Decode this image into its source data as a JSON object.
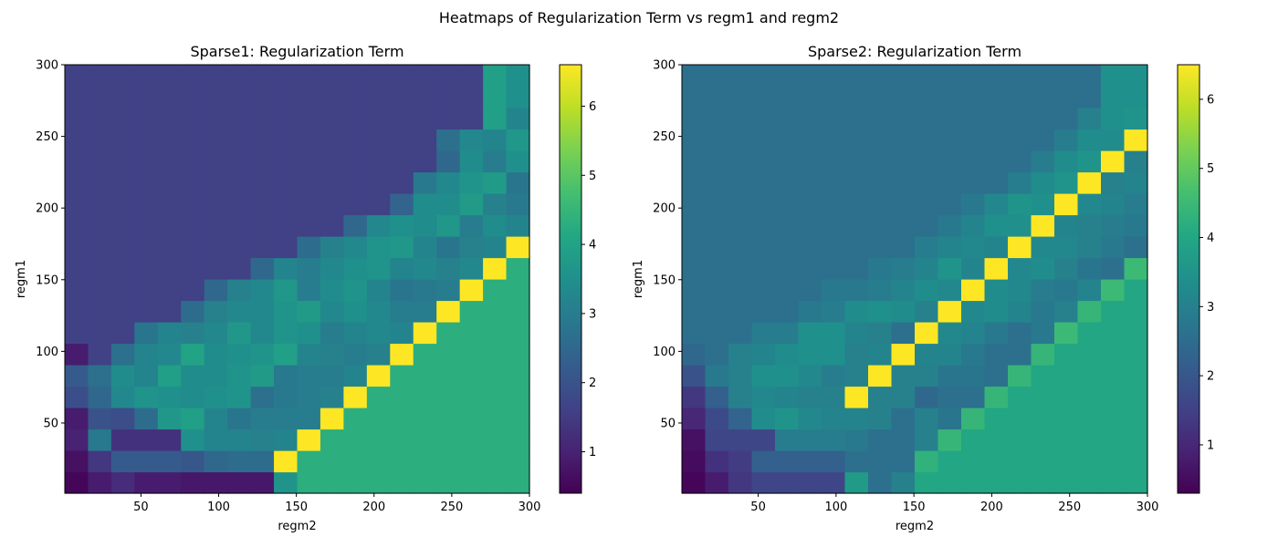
{
  "suptitle": "Heatmaps of Regularization Term vs regm1 and regm2",
  "chart_data": [
    {
      "type": "heatmap",
      "title": "Sparse1: Regularization Term",
      "xlabel": "regm2",
      "ylabel": "regm1",
      "x_ticks": [
        50,
        100,
        150,
        200,
        250,
        300
      ],
      "y_ticks": [
        50,
        100,
        150,
        200,
        250,
        300
      ],
      "xlim": [
        1,
        300
      ],
      "ylim": [
        1,
        300
      ],
      "grid_size": 20,
      "colorbar_range": [
        0.4,
        6.6
      ],
      "colorbar_ticks": [
        1,
        2,
        3,
        4,
        5,
        6
      ],
      "colormap": "viridis",
      "values": [
        [
          0.5,
          0.9,
          1.2,
          0.9,
          0.9,
          0.8,
          0.8,
          0.8,
          0.8,
          3.6,
          4.3,
          4.3,
          4.3,
          4.3,
          4.3,
          4.3,
          4.3,
          4.3,
          4.3,
          4.3
        ],
        [
          0.7,
          1.4,
          2.2,
          2.2,
          2.2,
          2.1,
          2.5,
          2.6,
          2.6,
          6.6,
          4.3,
          4.3,
          4.3,
          4.3,
          4.3,
          4.3,
          4.3,
          4.3,
          4.3,
          4.3
        ],
        [
          1.0,
          2.9,
          1.3,
          1.3,
          1.3,
          3.5,
          3.2,
          3.2,
          3.1,
          3.2,
          6.6,
          4.3,
          4.3,
          4.3,
          4.3,
          4.3,
          4.3,
          4.3,
          4.3,
          4.3
        ],
        [
          0.9,
          2.0,
          1.9,
          2.6,
          3.7,
          3.9,
          3.2,
          2.8,
          3.0,
          3.0,
          3.0,
          6.6,
          4.3,
          4.3,
          4.3,
          4.3,
          4.3,
          4.3,
          4.3,
          4.3
        ],
        [
          1.9,
          2.5,
          3.3,
          3.6,
          3.5,
          3.4,
          3.5,
          3.6,
          2.7,
          2.9,
          3.0,
          3.1,
          6.6,
          4.3,
          4.3,
          4.3,
          4.3,
          4.3,
          4.3,
          4.3
        ],
        [
          2.2,
          2.7,
          3.4,
          3.2,
          3.9,
          3.4,
          3.4,
          3.6,
          3.8,
          2.9,
          3.0,
          3.0,
          3.2,
          6.6,
          4.3,
          4.3,
          4.3,
          4.3,
          4.3,
          4.3
        ],
        [
          0.9,
          1.6,
          2.7,
          3.2,
          3.3,
          4.0,
          3.4,
          3.5,
          3.6,
          3.9,
          3.2,
          3.1,
          3.0,
          3.1,
          6.6,
          4.3,
          4.3,
          4.3,
          4.3,
          4.3
        ],
        [
          1.6,
          1.6,
          1.6,
          2.8,
          3.2,
          3.1,
          3.3,
          3.7,
          3.3,
          3.6,
          3.5,
          3.0,
          3.2,
          3.3,
          3.2,
          6.6,
          4.3,
          4.3,
          4.3,
          4.3
        ],
        [
          1.6,
          1.6,
          1.6,
          1.6,
          1.6,
          2.6,
          3.1,
          3.3,
          3.3,
          3.6,
          3.8,
          3.3,
          3.5,
          3.3,
          3.0,
          3.0,
          6.6,
          4.3,
          4.3,
          4.3
        ],
        [
          1.6,
          1.6,
          1.6,
          1.6,
          1.6,
          1.6,
          2.5,
          3.1,
          3.3,
          3.7,
          3.0,
          3.4,
          3.6,
          3.2,
          2.8,
          2.9,
          3.0,
          6.6,
          4.3,
          4.3
        ],
        [
          1.6,
          1.6,
          1.6,
          1.6,
          1.6,
          1.6,
          1.6,
          1.6,
          2.5,
          3.2,
          3.0,
          3.3,
          3.5,
          3.6,
          3.2,
          3.3,
          3.1,
          3.3,
          6.6,
          4.3
        ],
        [
          1.6,
          1.6,
          1.6,
          1.6,
          1.6,
          1.6,
          1.6,
          1.6,
          1.6,
          1.6,
          2.6,
          3.1,
          3.3,
          3.6,
          3.7,
          3.2,
          2.8,
          3.1,
          3.2,
          6.6
        ],
        [
          1.6,
          1.6,
          1.6,
          1.6,
          1.6,
          1.6,
          1.6,
          1.6,
          1.6,
          1.6,
          1.6,
          1.6,
          2.5,
          3.3,
          3.5,
          3.4,
          3.7,
          3.0,
          3.4,
          3.2
        ],
        [
          1.6,
          1.6,
          1.6,
          1.6,
          1.6,
          1.6,
          1.6,
          1.6,
          1.6,
          1.6,
          1.6,
          1.6,
          1.6,
          1.6,
          2.4,
          3.4,
          3.4,
          3.8,
          3.1,
          2.9
        ],
        [
          1.6,
          1.6,
          1.6,
          1.6,
          1.6,
          1.6,
          1.6,
          1.6,
          1.6,
          1.6,
          1.6,
          1.6,
          1.6,
          1.6,
          1.6,
          2.9,
          3.3,
          3.6,
          3.8,
          2.8
        ],
        [
          1.6,
          1.6,
          1.6,
          1.6,
          1.6,
          1.6,
          1.6,
          1.6,
          1.6,
          1.6,
          1.6,
          1.6,
          1.6,
          1.6,
          1.6,
          1.6,
          2.5,
          3.4,
          3.0,
          3.5
        ],
        [
          1.6,
          1.6,
          1.6,
          1.6,
          1.6,
          1.6,
          1.6,
          1.6,
          1.6,
          1.6,
          1.6,
          1.6,
          1.6,
          1.6,
          1.6,
          1.6,
          2.7,
          3.3,
          3.2,
          3.7
        ],
        [
          1.6,
          1.6,
          1.6,
          1.6,
          1.6,
          1.6,
          1.6,
          1.6,
          1.6,
          1.6,
          1.6,
          1.6,
          1.6,
          1.6,
          1.6,
          1.6,
          1.6,
          1.6,
          3.9,
          3.2
        ],
        [
          1.6,
          1.6,
          1.6,
          1.6,
          1.6,
          1.6,
          1.6,
          1.6,
          1.6,
          1.6,
          1.6,
          1.6,
          1.6,
          1.6,
          1.6,
          1.6,
          1.6,
          1.6,
          3.9,
          3.5
        ],
        [
          1.6,
          1.6,
          1.6,
          1.6,
          1.6,
          1.6,
          1.6,
          1.6,
          1.6,
          1.6,
          1.6,
          1.6,
          1.6,
          1.6,
          1.6,
          1.6,
          1.6,
          1.6,
          3.9,
          3.5
        ]
      ]
    },
    {
      "type": "heatmap",
      "title": "Sparse2: Regularization Term",
      "xlabel": "regm2",
      "ylabel": "regm1",
      "x_ticks": [
        50,
        100,
        150,
        200,
        250,
        300
      ],
      "y_ticks": [
        50,
        100,
        150,
        200,
        250,
        300
      ],
      "xlim": [
        1,
        300
      ],
      "ylim": [
        1,
        300
      ],
      "grid_size": 20,
      "colorbar_range": [
        0.3,
        6.5
      ],
      "colorbar_ticks": [
        1,
        2,
        3,
        4,
        5,
        6
      ],
      "colormap": "viridis",
      "values": [
        [
          0.4,
          0.8,
          1.3,
          1.6,
          1.6,
          1.6,
          1.6,
          3.7,
          2.6,
          3.0,
          4.0,
          4.0,
          4.0,
          4.0,
          4.0,
          4.0,
          4.0,
          4.0,
          4.0,
          4.0
        ],
        [
          0.5,
          1.2,
          1.4,
          2.2,
          2.2,
          2.2,
          2.2,
          2.6,
          2.6,
          2.6,
          4.3,
          4.0,
          4.0,
          4.0,
          4.0,
          4.0,
          4.0,
          4.0,
          4.0,
          4.0
        ],
        [
          0.6,
          1.6,
          1.6,
          1.6,
          2.9,
          2.9,
          2.9,
          2.8,
          2.6,
          2.6,
          3.0,
          4.4,
          4.0,
          4.0,
          4.0,
          4.0,
          4.0,
          4.0,
          4.0,
          4.0
        ],
        [
          1.0,
          1.7,
          2.3,
          3.3,
          3.5,
          3.2,
          3.1,
          3.1,
          3.0,
          2.6,
          3.0,
          2.7,
          4.4,
          4.0,
          4.0,
          4.0,
          4.0,
          4.0,
          4.0,
          4.0
        ],
        [
          1.3,
          2.2,
          3.0,
          3.2,
          3.1,
          3.0,
          3.0,
          6.5,
          3.0,
          3.0,
          2.4,
          2.6,
          2.6,
          4.4,
          4.0,
          4.0,
          4.0,
          4.0,
          4.0,
          4.0
        ],
        [
          1.9,
          2.8,
          3.0,
          3.4,
          3.4,
          3.2,
          2.9,
          3.0,
          6.5,
          3.0,
          3.0,
          2.7,
          2.7,
          2.6,
          4.4,
          4.0,
          4.0,
          4.0,
          4.0,
          4.0
        ],
        [
          2.4,
          2.6,
          3.0,
          3.1,
          3.3,
          3.4,
          3.4,
          3.0,
          3.1,
          6.5,
          3.1,
          3.1,
          2.8,
          2.6,
          2.6,
          4.4,
          4.0,
          4.0,
          4.0,
          4.0
        ],
        [
          2.6,
          2.6,
          2.6,
          2.9,
          2.9,
          3.4,
          3.4,
          3.1,
          3.0,
          2.6,
          6.5,
          3.2,
          3.1,
          2.8,
          2.6,
          2.8,
          4.5,
          4.0,
          4.0,
          4.0
        ],
        [
          2.6,
          2.6,
          2.6,
          2.6,
          2.6,
          2.8,
          2.9,
          3.3,
          3.4,
          3.3,
          3.0,
          6.5,
          3.2,
          3.3,
          3.1,
          2.8,
          3.0,
          4.4,
          4.0,
          4.0
        ],
        [
          2.6,
          2.6,
          2.6,
          2.6,
          2.6,
          2.6,
          2.8,
          2.8,
          2.9,
          3.1,
          3.3,
          3.2,
          6.5,
          3.3,
          3.2,
          2.9,
          2.8,
          3.1,
          4.5,
          4.0
        ],
        [
          2.6,
          2.6,
          2.6,
          2.6,
          2.6,
          2.6,
          2.6,
          2.6,
          2.8,
          2.9,
          3.1,
          3.5,
          3.1,
          6.5,
          3.2,
          3.3,
          3.0,
          2.7,
          2.6,
          4.5
        ],
        [
          2.6,
          2.6,
          2.6,
          2.6,
          2.6,
          2.6,
          2.6,
          2.6,
          2.6,
          2.6,
          2.9,
          3.1,
          3.2,
          3.1,
          6.5,
          3.2,
          3.2,
          3.0,
          2.8,
          2.6
        ],
        [
          2.6,
          2.6,
          2.6,
          2.6,
          2.6,
          2.6,
          2.6,
          2.6,
          2.6,
          2.6,
          2.6,
          2.8,
          3.1,
          3.4,
          3.4,
          6.5,
          3.1,
          3.0,
          2.9,
          2.8
        ],
        [
          2.6,
          2.6,
          2.6,
          2.6,
          2.6,
          2.6,
          2.6,
          2.6,
          2.6,
          2.6,
          2.6,
          2.6,
          2.8,
          3.2,
          3.5,
          3.4,
          6.5,
          3.2,
          3.1,
          2.9
        ],
        [
          2.6,
          2.6,
          2.6,
          2.6,
          2.6,
          2.6,
          2.6,
          2.6,
          2.6,
          2.6,
          2.6,
          2.6,
          2.6,
          2.6,
          2.9,
          3.3,
          3.5,
          6.5,
          3.0,
          3.1
        ],
        [
          2.6,
          2.6,
          2.6,
          2.6,
          2.6,
          2.6,
          2.6,
          2.6,
          2.6,
          2.6,
          2.6,
          2.6,
          2.6,
          2.6,
          2.6,
          2.9,
          3.3,
          3.5,
          6.5,
          3.0
        ],
        [
          2.6,
          2.6,
          2.6,
          2.6,
          2.6,
          2.6,
          2.6,
          2.6,
          2.6,
          2.6,
          2.6,
          2.6,
          2.6,
          2.6,
          2.6,
          2.6,
          2.9,
          3.3,
          3.3,
          6.5
        ],
        [
          2.6,
          2.6,
          2.6,
          2.6,
          2.6,
          2.6,
          2.6,
          2.6,
          2.6,
          2.6,
          2.6,
          2.6,
          2.6,
          2.6,
          2.6,
          2.6,
          2.6,
          3.0,
          3.4,
          3.5
        ],
        [
          2.6,
          2.6,
          2.6,
          2.6,
          2.6,
          2.6,
          2.6,
          2.6,
          2.6,
          2.6,
          2.6,
          2.6,
          2.6,
          2.6,
          2.6,
          2.6,
          2.6,
          2.6,
          3.4,
          3.4
        ],
        [
          2.6,
          2.6,
          2.6,
          2.6,
          2.6,
          2.6,
          2.6,
          2.6,
          2.6,
          2.6,
          2.6,
          2.6,
          2.6,
          2.6,
          2.6,
          2.6,
          2.6,
          2.6,
          3.4,
          3.4
        ]
      ]
    }
  ]
}
